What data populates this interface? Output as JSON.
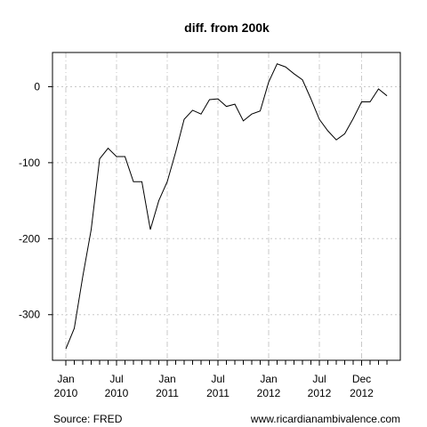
{
  "chart_data": {
    "type": "line",
    "title": "diff. from 200k",
    "xlabel": "",
    "ylabel": "",
    "x": [
      "2010-01",
      "2010-02",
      "2010-03",
      "2010-04",
      "2010-05",
      "2010-06",
      "2010-07",
      "2010-08",
      "2010-09",
      "2010-10",
      "2010-11",
      "2010-12",
      "2011-01",
      "2011-02",
      "2011-03",
      "2011-04",
      "2011-05",
      "2011-06",
      "2011-07",
      "2011-08",
      "2011-09",
      "2011-10",
      "2011-11",
      "2011-12",
      "2012-01",
      "2012-02",
      "2012-03",
      "2012-04",
      "2012-05",
      "2012-06",
      "2012-07",
      "2012-08",
      "2012-09",
      "2012-10",
      "2012-11",
      "2012-12",
      "2013-01",
      "2013-02",
      "2013-03"
    ],
    "series": [
      {
        "values": [
          -345,
          -318,
          -250,
          -188,
          -95,
          -81,
          -92,
          -92,
          -125,
          -125,
          -188,
          -150,
          -125,
          -86,
          -43,
          -31,
          -36,
          -17,
          -16,
          -26,
          -23,
          -45,
          -36,
          -32,
          6,
          30,
          26,
          17,
          9,
          -16,
          -43,
          -58,
          -70,
          -62,
          -42,
          -20,
          -20,
          -3,
          -12
        ]
      }
    ],
    "yticks": [
      0,
      -100,
      -200,
      -300
    ],
    "ylim": [
      -360,
      45
    ],
    "xtick_labels": [
      {
        "month": "Jan",
        "year": "2010",
        "at": "2010-01"
      },
      {
        "month": "Jul",
        "year": "2010",
        "at": "2010-07"
      },
      {
        "month": "Jan",
        "year": "2011",
        "at": "2011-01"
      },
      {
        "month": "Jul",
        "year": "2011",
        "at": "2011-07"
      },
      {
        "month": "Jan",
        "year": "2012",
        "at": "2012-01"
      },
      {
        "month": "Jul",
        "year": "2012",
        "at": "2012-07"
      },
      {
        "month": "Dec",
        "year": "2012",
        "at": "2012-12"
      }
    ],
    "grid": true,
    "line_color": "#000000",
    "grid_color": "#c8c8c8"
  },
  "footer": {
    "source": "Source: FRED",
    "site": "www.ricardianambivalence.com"
  }
}
